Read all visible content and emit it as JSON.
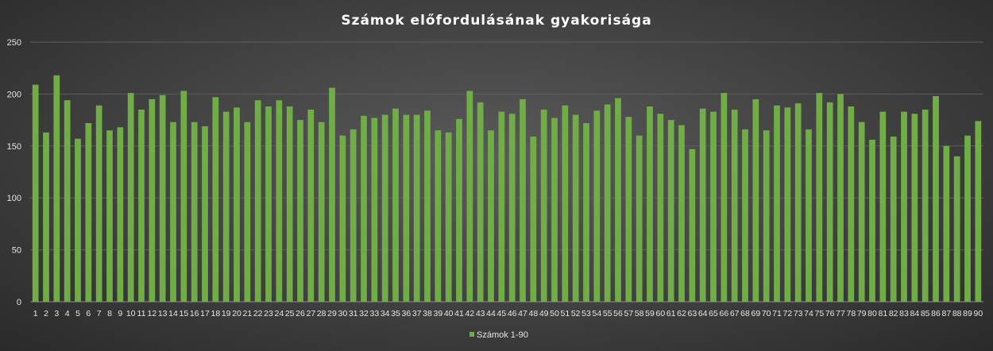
{
  "chart_data": {
    "type": "bar",
    "title": "Számok előfordulásának gyakorisága",
    "xlabel": "",
    "ylabel": "",
    "ylim": [
      0,
      250
    ],
    "yticks": [
      0,
      50,
      100,
      150,
      200,
      250
    ],
    "grid": true,
    "legend_position": "bottom",
    "bar_color": "#70ad47",
    "categories": [
      "1",
      "2",
      "3",
      "4",
      "5",
      "6",
      "7",
      "8",
      "9",
      "10",
      "11",
      "12",
      "13",
      "14",
      "15",
      "16",
      "17",
      "18",
      "19",
      "20",
      "21",
      "22",
      "23",
      "24",
      "25",
      "26",
      "27",
      "28",
      "29",
      "30",
      "31",
      "32",
      "33",
      "34",
      "35",
      "36",
      "37",
      "38",
      "39",
      "40",
      "41",
      "42",
      "43",
      "44",
      "45",
      "46",
      "47",
      "48",
      "49",
      "50",
      "51",
      "52",
      "53",
      "54",
      "55",
      "56",
      "57",
      "58",
      "59",
      "60",
      "61",
      "62",
      "63",
      "64",
      "65",
      "66",
      "67",
      "68",
      "69",
      "70",
      "71",
      "72",
      "73",
      "74",
      "75",
      "76",
      "77",
      "78",
      "79",
      "80",
      "81",
      "82",
      "83",
      "84",
      "85",
      "86",
      "87",
      "88",
      "89",
      "90"
    ],
    "series": [
      {
        "name": "Számok 1-90",
        "values": [
          209,
          163,
          218,
          194,
          157,
          172,
          189,
          165,
          168,
          201,
          185,
          195,
          199,
          173,
          203,
          173,
          169,
          197,
          183,
          187,
          173,
          194,
          188,
          194,
          188,
          175,
          185,
          173,
          206,
          160,
          166,
          179,
          177,
          180,
          186,
          180,
          180,
          184,
          165,
          163,
          176,
          203,
          192,
          165,
          183,
          181,
          195,
          159,
          185,
          177,
          189,
          180,
          172,
          184,
          190,
          196,
          178,
          160,
          188,
          181,
          175,
          170,
          147,
          186,
          183,
          201,
          185,
          166,
          195,
          165,
          189,
          187,
          191,
          166,
          201,
          192,
          200,
          188,
          173,
          156,
          183,
          159,
          183,
          181,
          185,
          198,
          150,
          140,
          160,
          174
        ]
      }
    ]
  }
}
